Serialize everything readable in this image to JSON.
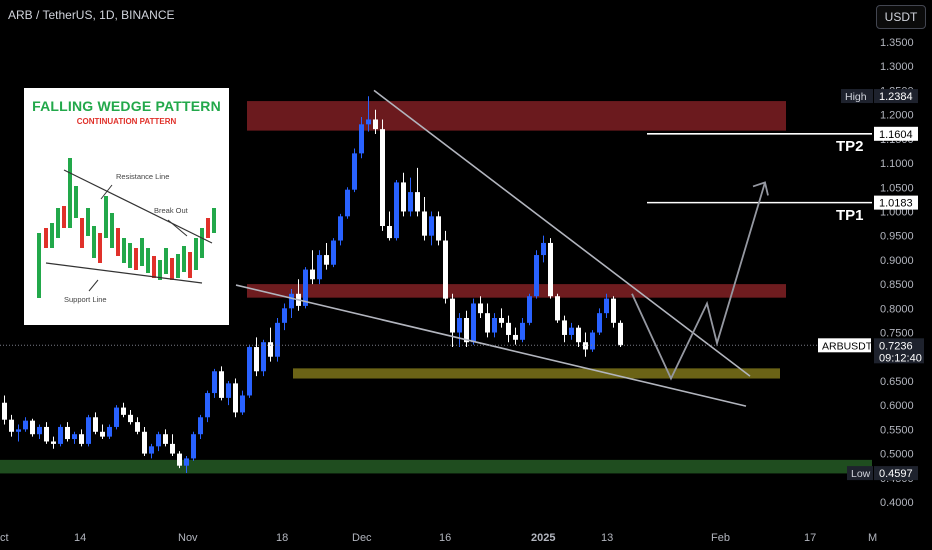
{
  "header": {
    "title": "ARB / TetherUS, 1D, BINANCE",
    "currency_button": "USDT"
  },
  "inset": {
    "title": "FALLING WEDGE PATTERN",
    "subtitle": "CONTINUATION PATTERN",
    "resistance_label": "Resistance Line",
    "breakout_label": "Break Out",
    "support_label": "Support Line"
  },
  "targets": {
    "tp1": {
      "label": "TP1",
      "price": "1.0183"
    },
    "tp2": {
      "label": "TP2",
      "price": "1.1604"
    }
  },
  "colors": {
    "background": "#000000",
    "bull": "#2962ff",
    "bear": "#ffffff",
    "supply_zone": "#6b1a1e",
    "mid_zone": "#6e1c1f",
    "support_zone": "#6b6316",
    "demand_zone": "#1f4d1f",
    "wedge": "#b2b5be",
    "projection": "#9598a1"
  },
  "chart_data": {
    "type": "candlestick",
    "symbol": "ARB / TetherUS",
    "timeframe": "1D",
    "exchange": "BINANCE",
    "ylim": [
      0.38,
      1.38
    ],
    "y_ticks": [
      "1.3500",
      "1.3000",
      "1.2500",
      "1.2000",
      "1.1500",
      "1.1000",
      "1.0500",
      "1.0000",
      "0.9500",
      "0.9000",
      "0.8500",
      "0.8000",
      "0.7500",
      "0.7000",
      "0.6500",
      "0.6000",
      "0.5500",
      "0.5000",
      "0.4500",
      "0.4000"
    ],
    "x_ticks": [
      "ct",
      "14",
      "Nov",
      "18",
      "Dec",
      "16",
      "2025",
      "13",
      "Feb",
      "17",
      "M"
    ],
    "high_label": "High",
    "high_value": "1.2384",
    "low_label": "Low",
    "low_value": "0.4597",
    "last_label": "ARBUSDT",
    "last_value": "0.7236",
    "countdown": "09:12:40",
    "zones": [
      {
        "name": "supply",
        "from": 1.167,
        "to": 1.228
      },
      {
        "name": "mid-resistance",
        "from": 0.822,
        "to": 0.85
      },
      {
        "name": "support",
        "from": 0.655,
        "to": 0.676
      },
      {
        "name": "demand",
        "from": 0.459,
        "to": 0.487
      }
    ],
    "candles": [
      [
        0.605,
        0.62,
        0.56,
        0.57
      ],
      [
        0.57,
        0.58,
        0.535,
        0.545
      ],
      [
        0.545,
        0.56,
        0.525,
        0.55
      ],
      [
        0.55,
        0.575,
        0.545,
        0.568
      ],
      [
        0.568,
        0.572,
        0.535,
        0.54
      ],
      [
        0.54,
        0.56,
        0.53,
        0.555
      ],
      [
        0.555,
        0.565,
        0.52,
        0.525
      ],
      [
        0.525,
        0.535,
        0.51,
        0.52
      ],
      [
        0.52,
        0.56,
        0.515,
        0.555
      ],
      [
        0.555,
        0.565,
        0.525,
        0.53
      ],
      [
        0.53,
        0.545,
        0.52,
        0.54
      ],
      [
        0.54,
        0.55,
        0.515,
        0.52
      ],
      [
        0.52,
        0.58,
        0.515,
        0.575
      ],
      [
        0.575,
        0.585,
        0.54,
        0.545
      ],
      [
        0.545,
        0.56,
        0.53,
        0.535
      ],
      [
        0.535,
        0.56,
        0.53,
        0.555
      ],
      [
        0.555,
        0.6,
        0.55,
        0.595
      ],
      [
        0.595,
        0.605,
        0.575,
        0.58
      ],
      [
        0.58,
        0.59,
        0.56,
        0.565
      ],
      [
        0.565,
        0.575,
        0.54,
        0.545
      ],
      [
        0.545,
        0.555,
        0.495,
        0.5
      ],
      [
        0.5,
        0.52,
        0.49,
        0.515
      ],
      [
        0.515,
        0.545,
        0.505,
        0.54
      ],
      [
        0.54,
        0.55,
        0.515,
        0.52
      ],
      [
        0.52,
        0.54,
        0.495,
        0.5
      ],
      [
        0.5,
        0.505,
        0.47,
        0.475
      ],
      [
        0.475,
        0.495,
        0.46,
        0.49
      ],
      [
        0.49,
        0.545,
        0.485,
        0.54
      ],
      [
        0.54,
        0.58,
        0.53,
        0.575
      ],
      [
        0.575,
        0.63,
        0.565,
        0.625
      ],
      [
        0.625,
        0.675,
        0.615,
        0.67
      ],
      [
        0.67,
        0.68,
        0.61,
        0.615
      ],
      [
        0.615,
        0.65,
        0.6,
        0.645
      ],
      [
        0.645,
        0.655,
        0.575,
        0.585
      ],
      [
        0.585,
        0.63,
        0.58,
        0.62
      ],
      [
        0.62,
        0.725,
        0.615,
        0.72
      ],
      [
        0.72,
        0.74,
        0.66,
        0.67
      ],
      [
        0.67,
        0.735,
        0.66,
        0.73
      ],
      [
        0.73,
        0.76,
        0.69,
        0.7
      ],
      [
        0.7,
        0.78,
        0.69,
        0.77
      ],
      [
        0.77,
        0.81,
        0.755,
        0.8
      ],
      [
        0.8,
        0.84,
        0.78,
        0.83
      ],
      [
        0.83,
        0.86,
        0.795,
        0.805
      ],
      [
        0.805,
        0.885,
        0.8,
        0.88
      ],
      [
        0.88,
        0.92,
        0.85,
        0.86
      ],
      [
        0.86,
        0.92,
        0.85,
        0.91
      ],
      [
        0.91,
        0.935,
        0.88,
        0.89
      ],
      [
        0.89,
        0.945,
        0.885,
        0.94
      ],
      [
        0.94,
        0.995,
        0.93,
        0.99
      ],
      [
        0.99,
        1.05,
        0.985,
        1.045
      ],
      [
        1.045,
        1.13,
        1.04,
        1.12
      ],
      [
        1.12,
        1.195,
        1.11,
        1.18
      ],
      [
        1.18,
        1.238,
        1.165,
        1.19
      ],
      [
        1.19,
        1.21,
        1.16,
        1.17
      ],
      [
        1.17,
        1.19,
        0.96,
        0.97
      ],
      [
        0.97,
        1.0,
        0.94,
        0.945
      ],
      [
        0.945,
        1.065,
        0.94,
        1.06
      ],
      [
        1.06,
        1.08,
        0.99,
        1.0
      ],
      [
        1.0,
        1.07,
        0.99,
        1.04
      ],
      [
        1.04,
        1.09,
        0.99,
        1.0
      ],
      [
        1.0,
        1.03,
        0.94,
        0.95
      ],
      [
        0.95,
        1.0,
        0.93,
        0.99
      ],
      [
        0.99,
        1.0,
        0.93,
        0.94
      ],
      [
        0.94,
        0.96,
        0.81,
        0.82
      ],
      [
        0.82,
        0.83,
        0.72,
        0.75
      ],
      [
        0.75,
        0.79,
        0.72,
        0.78
      ],
      [
        0.78,
        0.795,
        0.72,
        0.73
      ],
      [
        0.73,
        0.82,
        0.725,
        0.81
      ],
      [
        0.81,
        0.825,
        0.78,
        0.79
      ],
      [
        0.79,
        0.81,
        0.74,
        0.75
      ],
      [
        0.75,
        0.79,
        0.74,
        0.78
      ],
      [
        0.78,
        0.8,
        0.76,
        0.77
      ],
      [
        0.77,
        0.785,
        0.73,
        0.745
      ],
      [
        0.745,
        0.76,
        0.725,
        0.735
      ],
      [
        0.735,
        0.78,
        0.73,
        0.77
      ],
      [
        0.77,
        0.83,
        0.765,
        0.825
      ],
      [
        0.825,
        0.92,
        0.82,
        0.91
      ],
      [
        0.91,
        0.95,
        0.895,
        0.935
      ],
      [
        0.935,
        0.945,
        0.82,
        0.825
      ],
      [
        0.825,
        0.83,
        0.77,
        0.775
      ],
      [
        0.775,
        0.785,
        0.73,
        0.745
      ],
      [
        0.745,
        0.77,
        0.735,
        0.76
      ],
      [
        0.76,
        0.765,
        0.72,
        0.73
      ],
      [
        0.73,
        0.75,
        0.7,
        0.715
      ],
      [
        0.715,
        0.755,
        0.71,
        0.75
      ],
      [
        0.75,
        0.8,
        0.745,
        0.79
      ],
      [
        0.79,
        0.83,
        0.78,
        0.82
      ],
      [
        0.82,
        0.825,
        0.76,
        0.77
      ],
      [
        0.77,
        0.775,
        0.72,
        0.724
      ]
    ]
  }
}
